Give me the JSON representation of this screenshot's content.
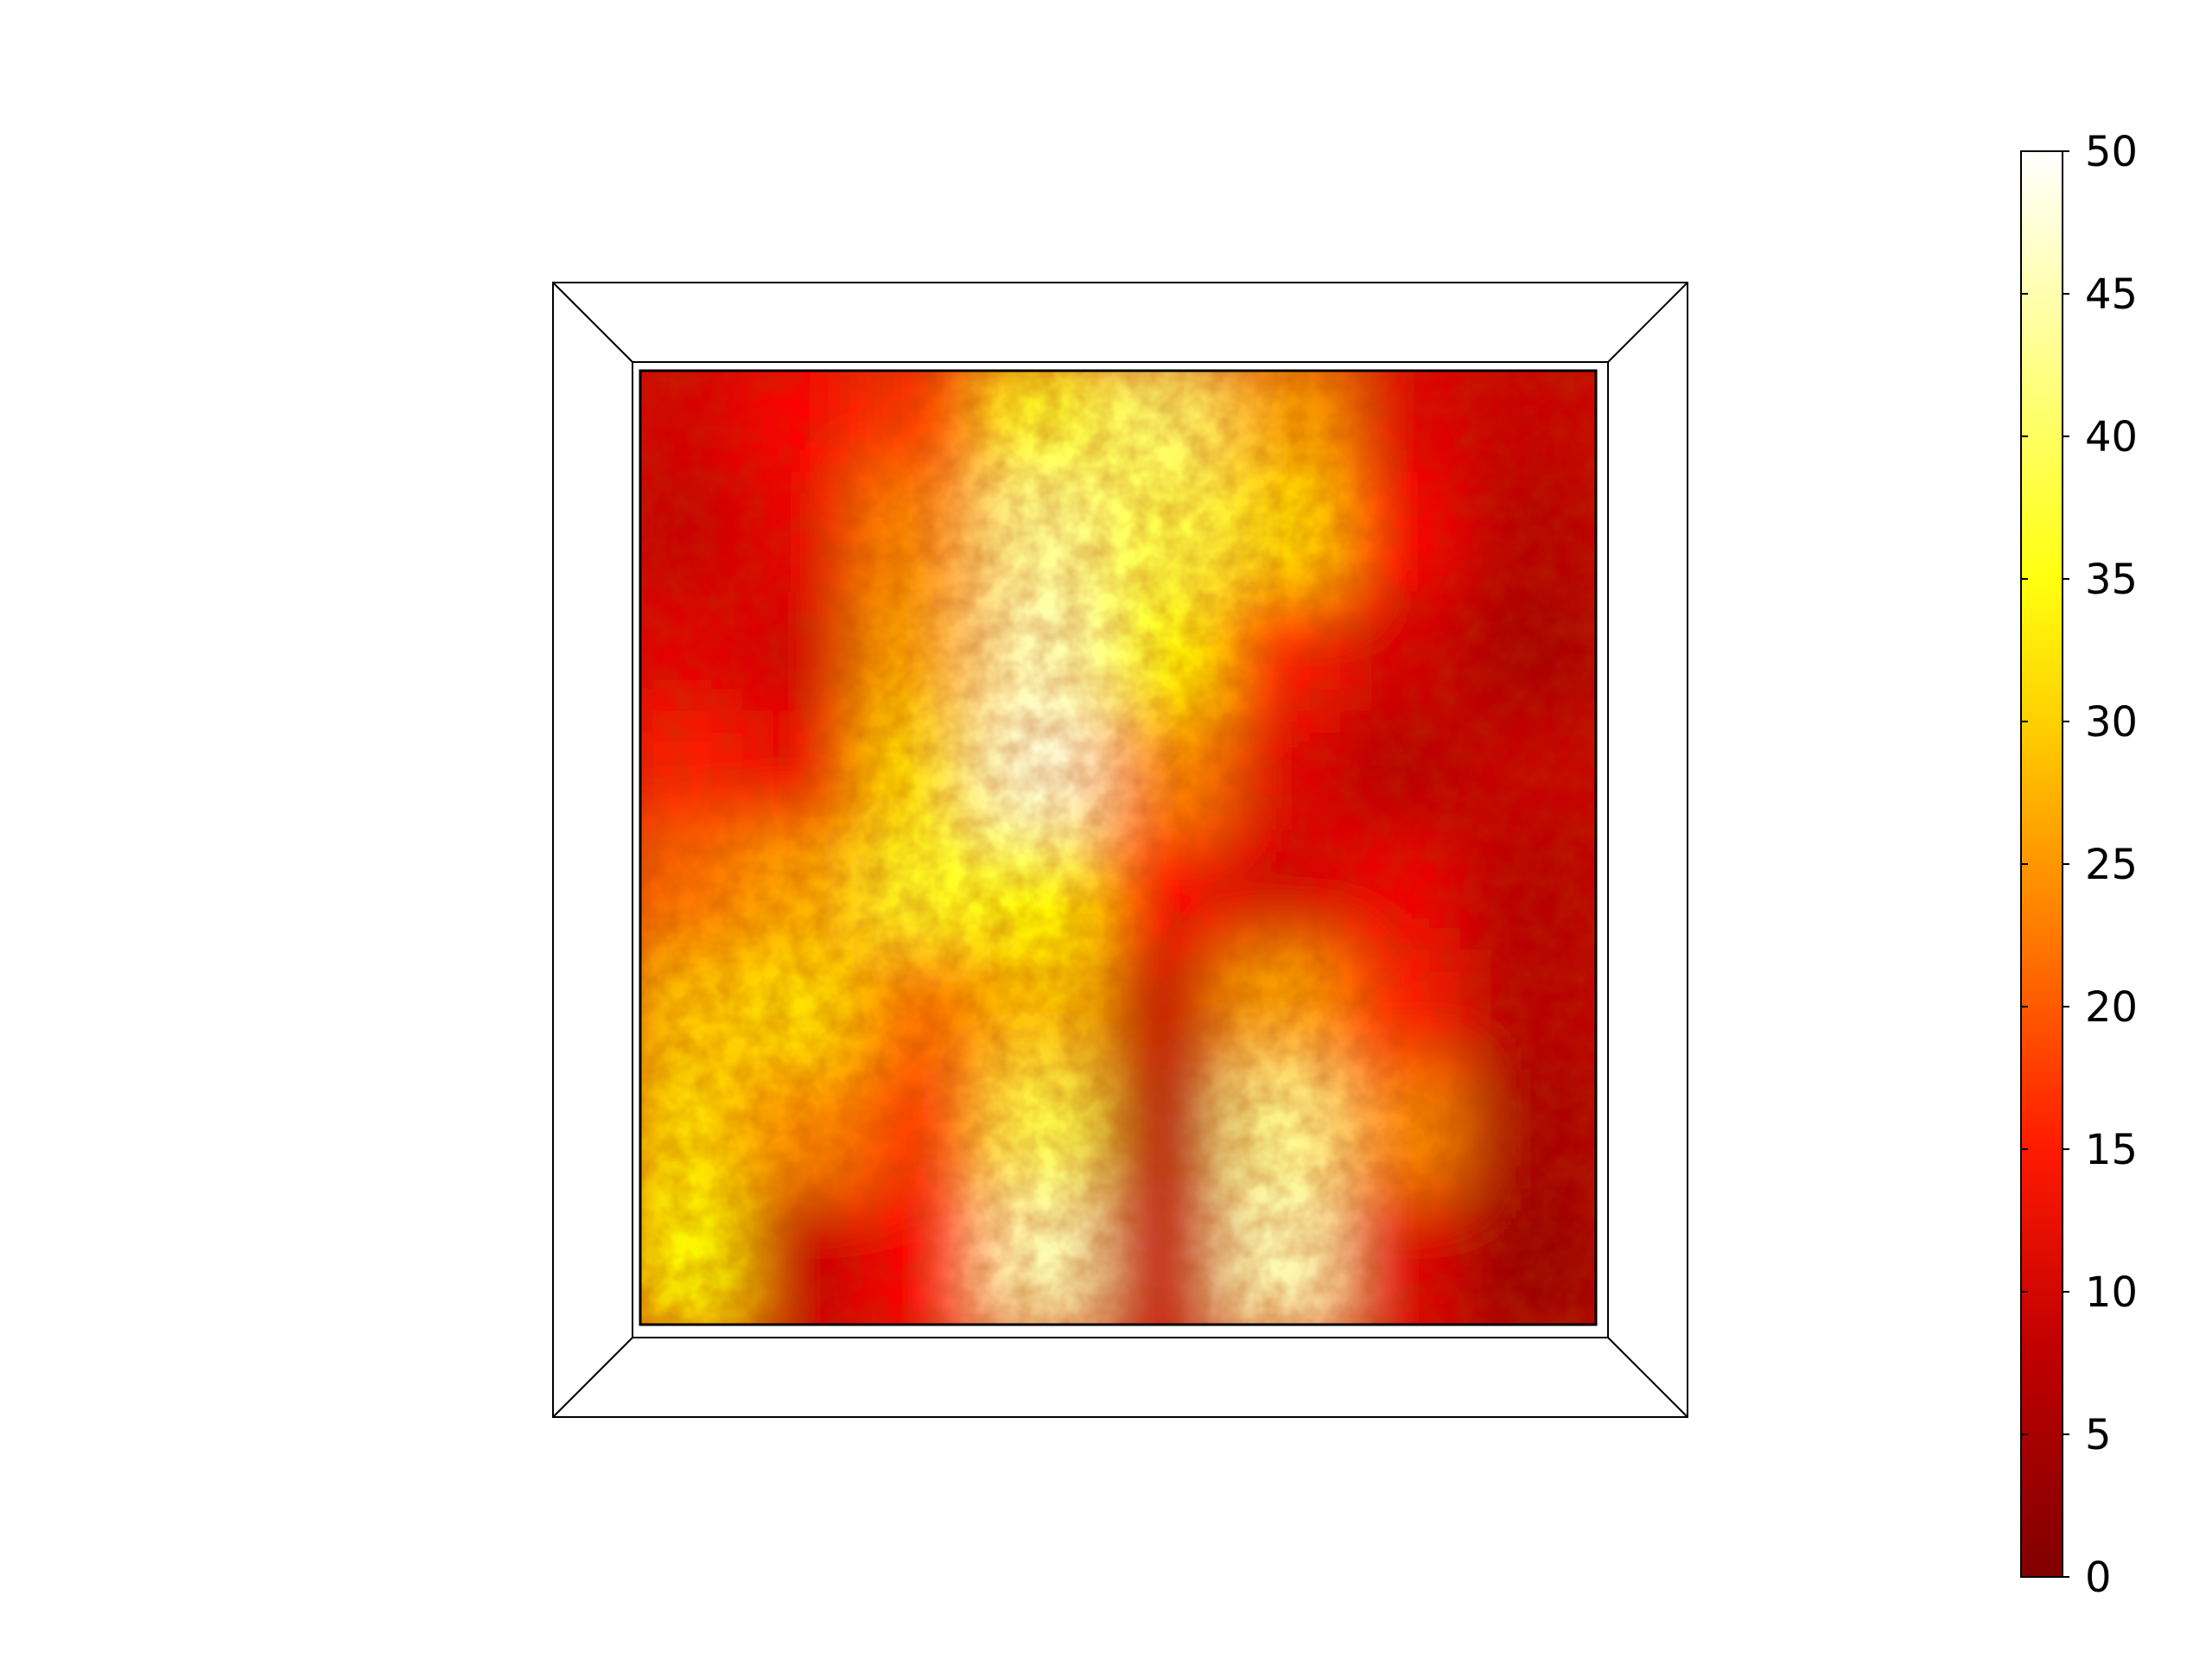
{
  "chart_data": {
    "type": "heatmap",
    "title": "",
    "xlabel": "",
    "ylabel": "",
    "colormap": "hot",
    "colorbar": {
      "min": 0,
      "max": 50,
      "ticks": [
        0,
        5,
        10,
        15,
        20,
        25,
        30,
        35,
        40,
        45,
        50
      ],
      "tick_labels": [
        "0",
        "5",
        "10",
        "15",
        "20",
        "25",
        "30",
        "35",
        "40",
        "45",
        "50"
      ]
    },
    "field_summary": {
      "grid": "8 x 8",
      "description_rows_top_to_bottom": true,
      "values": [
        [
          12,
          18,
          22,
          38,
          42,
          30,
          14,
          10
        ],
        [
          10,
          15,
          28,
          44,
          40,
          34,
          18,
          8
        ],
        [
          14,
          12,
          30,
          46,
          36,
          20,
          12,
          6
        ],
        [
          20,
          16,
          34,
          48,
          28,
          14,
          8,
          10
        ],
        [
          26,
          30,
          38,
          36,
          18,
          12,
          16,
          8
        ],
        [
          32,
          34,
          26,
          32,
          10,
          30,
          20,
          8
        ],
        [
          34,
          28,
          22,
          40,
          8,
          44,
          28,
          6
        ],
        [
          36,
          10,
          18,
          46,
          10,
          46,
          14,
          4
        ]
      ]
    }
  },
  "colors": {
    "colormap_stops": [
      "#800000",
      "#ff0000",
      "#ffff00",
      "#ffffff"
    ]
  }
}
